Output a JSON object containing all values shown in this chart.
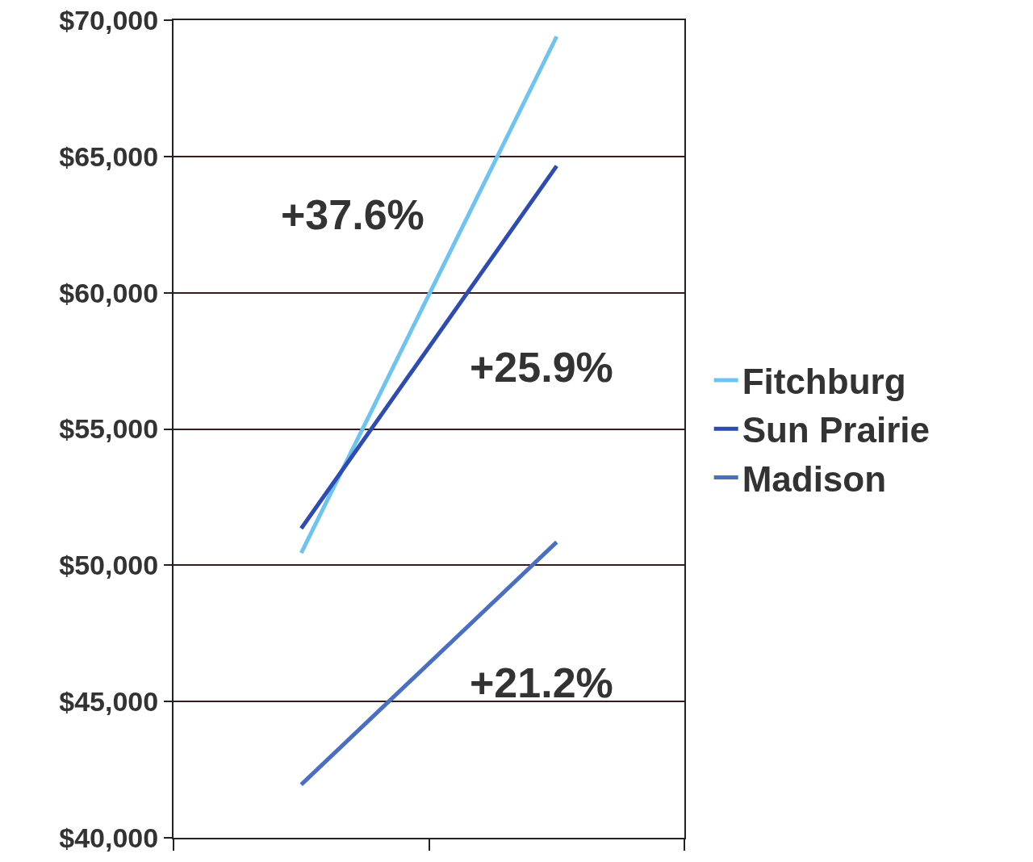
{
  "chart_data": {
    "type": "line",
    "categories": [
      null,
      null
    ],
    "series": [
      {
        "name": "Fitchburg",
        "color": "#6ec3f0",
        "values": [
          50450,
          69400
        ]
      },
      {
        "name": "Sun Prairie",
        "color": "#2e4cb0",
        "values": [
          51350,
          64650
        ]
      },
      {
        "name": "Madison",
        "color": "#4a6fc0",
        "values": [
          41950,
          50850
        ]
      }
    ],
    "ylim": [
      40000,
      70000
    ],
    "yticks": [
      {
        "value": 40000,
        "label": "$40,000"
      },
      {
        "value": 45000,
        "label": "$45,000"
      },
      {
        "value": 50000,
        "label": "$50,000"
      },
      {
        "value": 55000,
        "label": "$55,000"
      },
      {
        "value": 60000,
        "label": "$60,000"
      },
      {
        "value": 65000,
        "label": "$65,000"
      },
      {
        "value": 70000,
        "label": "$70,000"
      }
    ],
    "annotations": [
      "+37.6%",
      "+25.9%",
      "+21.2%"
    ],
    "grid": "y",
    "legend": "right",
    "marker": "none",
    "line_style": "solid",
    "tick_labels": "y"
  }
}
